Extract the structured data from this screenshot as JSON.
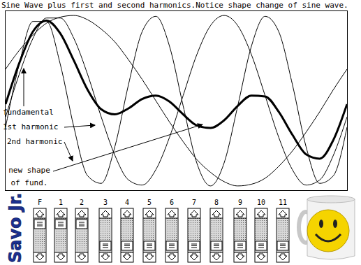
{
  "chart_data": {
    "type": "line",
    "title": "Sine Wave plus first and second harmonics.Notice shape change of sine wave.",
    "x": [
      0,
      4,
      8,
      12,
      16,
      20,
      24,
      28,
      32,
      36,
      40,
      44,
      48,
      52,
      56,
      60,
      64,
      68,
      72,
      76,
      80,
      84,
      88,
      92,
      96,
      100
    ],
    "xlim": [
      0,
      100
    ],
    "ylim": [
      -1.05,
      1.05
    ],
    "tick_labels": false,
    "grid": false,
    "series": [
      {
        "name": "fundamental",
        "color": "#000000",
        "line_style": "solid",
        "values": [
          0.37,
          0.59,
          0.77,
          0.91,
          0.98,
          1.0,
          0.95,
          0.84,
          0.69,
          0.48,
          0.25,
          0.0,
          -0.25,
          -0.48,
          -0.69,
          -0.84,
          -0.95,
          -1.0,
          -0.98,
          -0.91,
          -0.77,
          -0.59,
          -0.37,
          -0.13,
          0.13,
          0.37
        ]
      },
      {
        "name": "1st harmonic",
        "color": "#000000",
        "line_style": "solid",
        "values": [
          -0.19,
          0.31,
          0.73,
          0.97,
          0.97,
          0.73,
          0.31,
          -0.19,
          -0.64,
          -0.93,
          -0.99,
          -0.81,
          -0.43,
          0.06,
          0.54,
          0.88,
          1.0,
          0.88,
          0.54,
          0.06,
          -0.43,
          -0.81,
          -0.99,
          -0.93,
          -0.64,
          -0.19
        ]
      },
      {
        "name": "2nd harmonic",
        "color": "#000000",
        "line_style": "solid",
        "values": [
          -0.31,
          0.43,
          0.93,
          0.93,
          0.43,
          -0.31,
          -0.88,
          -0.97,
          -0.54,
          0.19,
          0.81,
          0.99,
          0.64,
          -0.06,
          -0.73,
          -1.0,
          -0.73,
          -0.06,
          0.64,
          0.99,
          0.81,
          0.19,
          -0.54,
          -0.97,
          -0.88,
          -0.31
        ]
      },
      {
        "name": "new shape of fund.",
        "color": "#000000",
        "line_style": "bold",
        "values": [
          -0.04,
          0.44,
          0.81,
          0.94,
          0.79,
          0.47,
          0.13,
          -0.1,
          -0.16,
          -0.09,
          0.02,
          0.06,
          -0.01,
          -0.16,
          -0.29,
          -0.32,
          -0.23,
          -0.06,
          0.06,
          0.05,
          -0.13,
          -0.4,
          -0.63,
          -0.68,
          -0.46,
          -0.04
        ]
      }
    ]
  },
  "sliders": [
    "F",
    "1",
    "2",
    "3",
    "4",
    "5",
    "6",
    "7",
    "8",
    "9",
    "10",
    "11"
  ],
  "side_label": "Savo Jr."
}
